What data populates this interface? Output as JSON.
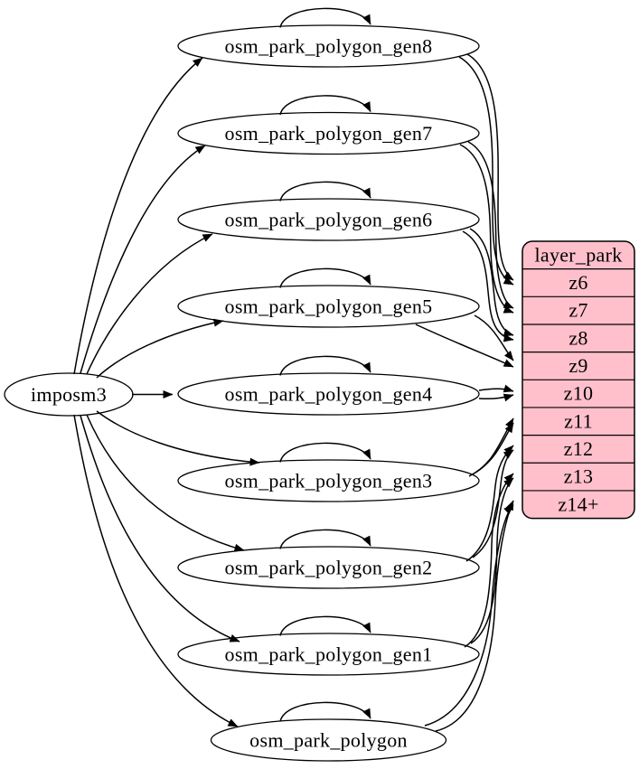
{
  "diagram": {
    "source_node": {
      "label": "imposm3"
    },
    "table_nodes": [
      {
        "label": "osm_park_polygon_gen8",
        "feeds_zoom": "z6"
      },
      {
        "label": "osm_park_polygon_gen7",
        "feeds_zoom": "z7"
      },
      {
        "label": "osm_park_polygon_gen6",
        "feeds_zoom": "z8"
      },
      {
        "label": "osm_park_polygon_gen5",
        "feeds_zoom": "z9"
      },
      {
        "label": "osm_park_polygon_gen4",
        "feeds_zoom": "z10"
      },
      {
        "label": "osm_park_polygon_gen3",
        "feeds_zoom": "z11"
      },
      {
        "label": "osm_park_polygon_gen2",
        "feeds_zoom": "z12"
      },
      {
        "label": "osm_park_polygon_gen1",
        "feeds_zoom": "z13"
      },
      {
        "label": "osm_park_polygon",
        "feeds_zoom": "z14+"
      }
    ],
    "layer_node": {
      "title": "layer_park",
      "rows": [
        "z6",
        "z7",
        "z8",
        "z9",
        "z10",
        "z11",
        "z12",
        "z13",
        "z14+"
      ]
    },
    "edges": {
      "from_source_to": [
        "osm_park_polygon_gen8",
        "osm_park_polygon_gen7",
        "osm_park_polygon_gen6",
        "osm_park_polygon_gen5",
        "osm_park_polygon_gen4",
        "osm_park_polygon_gen3",
        "osm_park_polygon_gen2",
        "osm_park_polygon_gen1",
        "osm_park_polygon"
      ],
      "self_loops_on": [
        "osm_park_polygon_gen8",
        "osm_park_polygon_gen7",
        "osm_park_polygon_gen6",
        "osm_park_polygon_gen5",
        "osm_park_polygon_gen4",
        "osm_park_polygon_gen3",
        "osm_park_polygon_gen2",
        "osm_park_polygon_gen1",
        "osm_park_polygon"
      ],
      "table_to_zoom": [
        {
          "from": "osm_park_polygon_gen8",
          "to": "z6",
          "lines": 2
        },
        {
          "from": "osm_park_polygon_gen7",
          "to": "z7",
          "lines": 2
        },
        {
          "from": "osm_park_polygon_gen6",
          "to": "z8",
          "lines": 2
        },
        {
          "from": "osm_park_polygon_gen5",
          "to": "z9",
          "lines": 2
        },
        {
          "from": "osm_park_polygon_gen4",
          "to": "z10",
          "lines": 2
        },
        {
          "from": "osm_park_polygon_gen3",
          "to": "z11",
          "lines": 2
        },
        {
          "from": "osm_park_polygon_gen2",
          "to": "z12",
          "lines": 2
        },
        {
          "from": "osm_park_polygon_gen1",
          "to": "z13",
          "lines": 2
        },
        {
          "from": "osm_park_polygon",
          "to": "z14+",
          "lines": 2
        }
      ]
    },
    "colors": {
      "layer_fill": "#ffc0cb",
      "node_fill": "#ffffff",
      "stroke": "#000000",
      "text": "#000000",
      "background": "#ffffff"
    }
  }
}
